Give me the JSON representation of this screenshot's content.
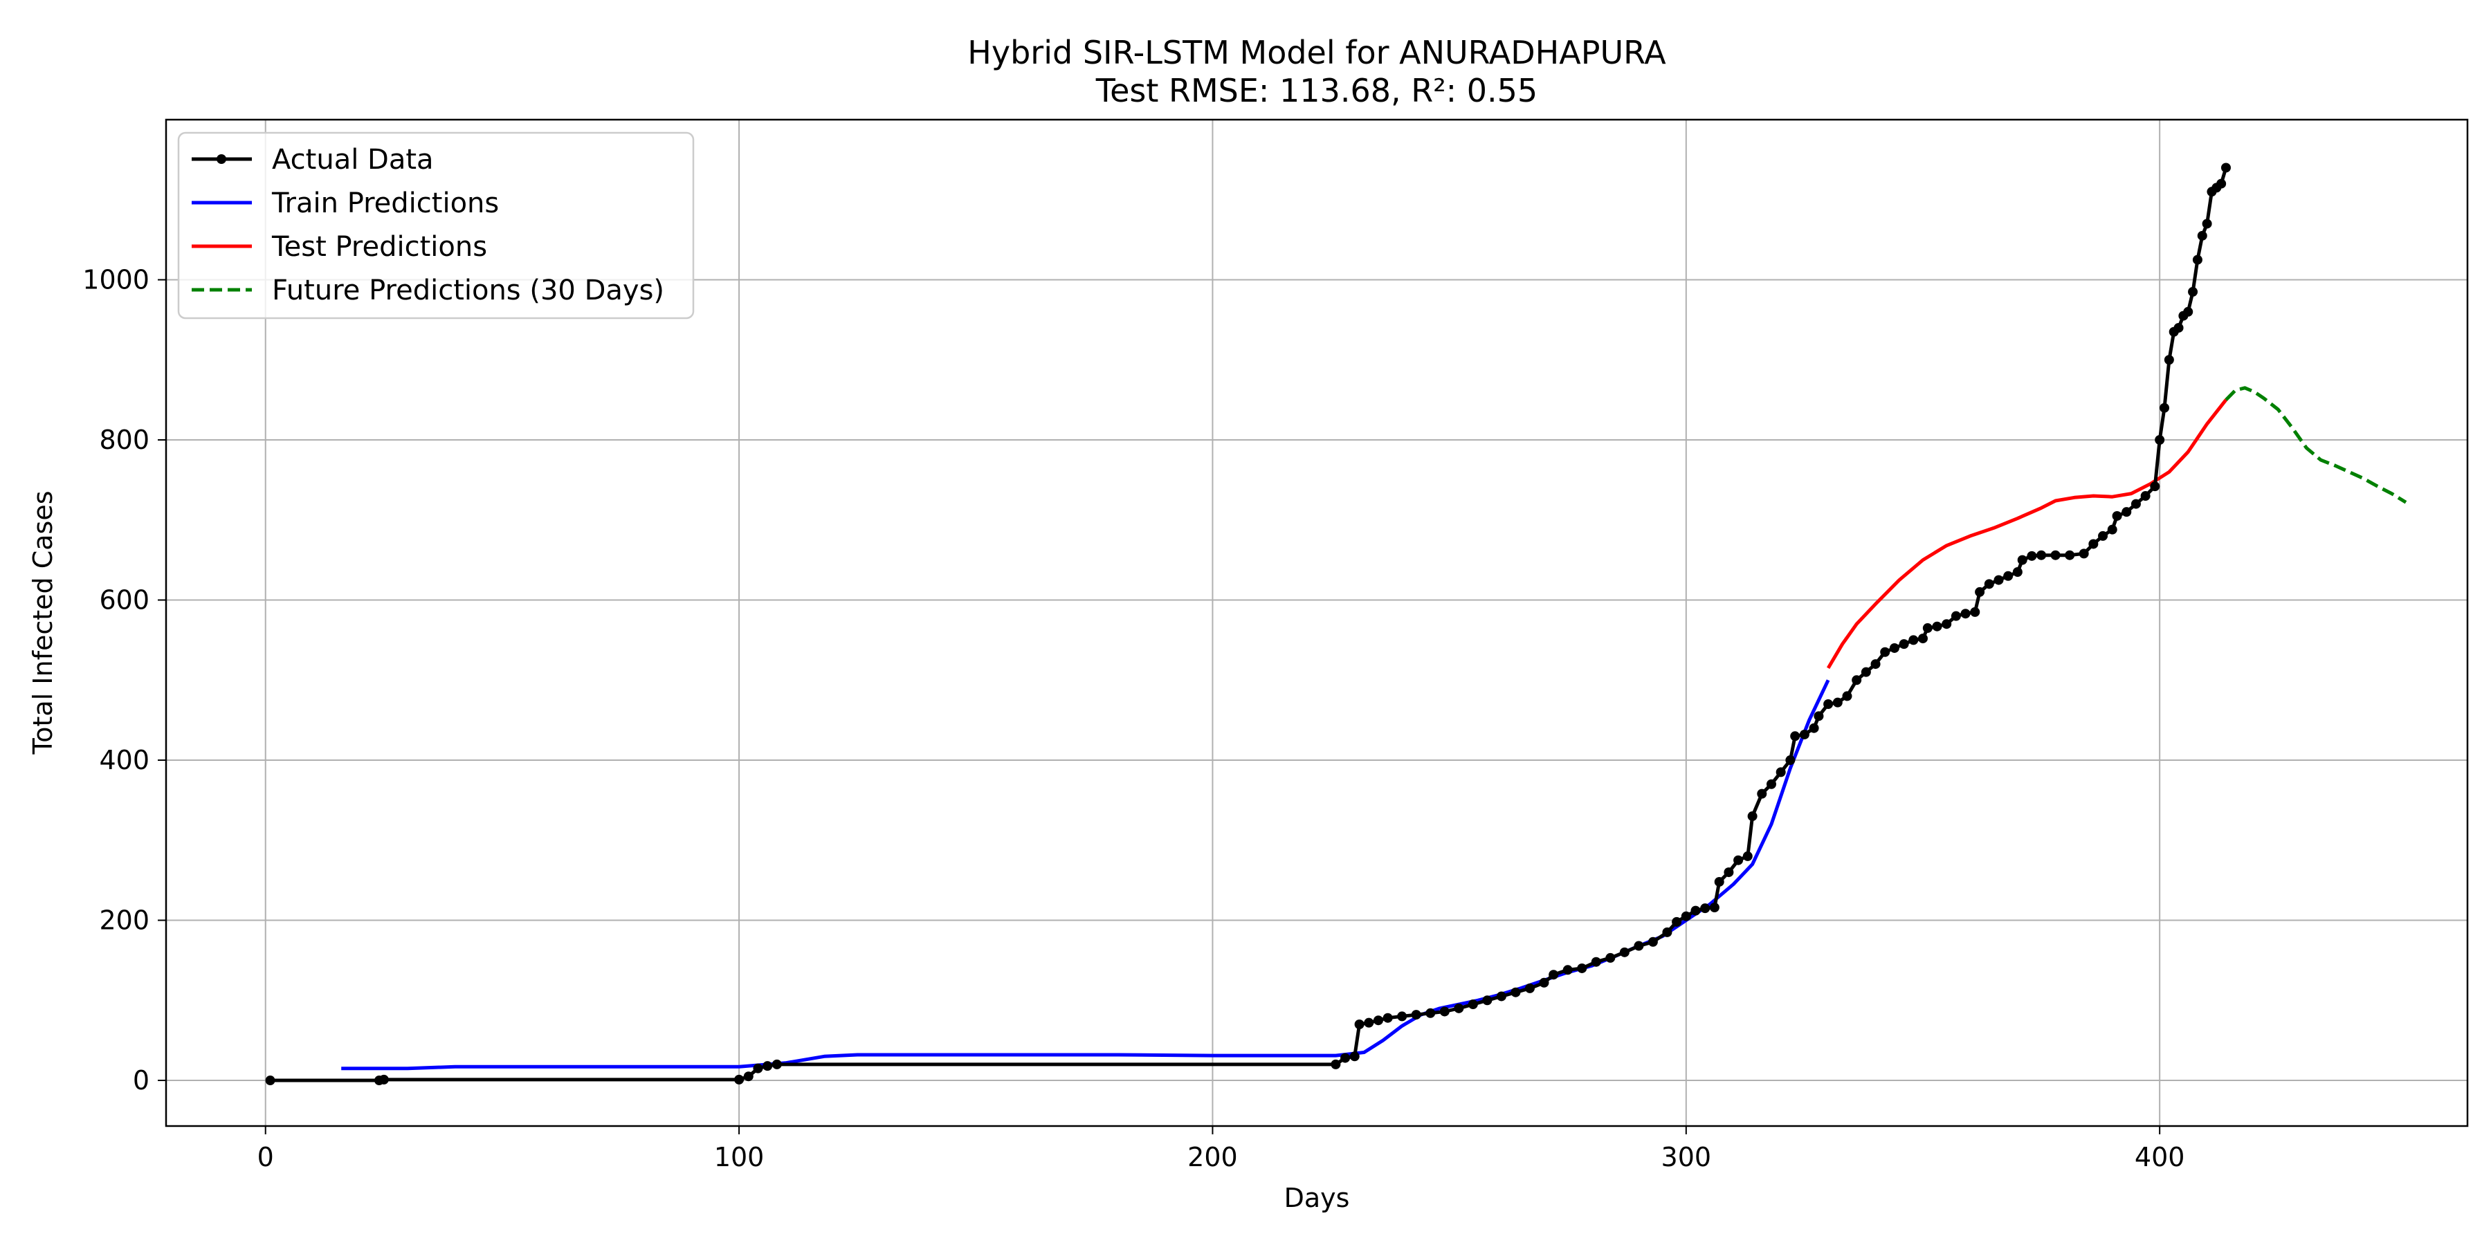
{
  "chart_data": {
    "type": "line",
    "title": "Hybrid SIR-LSTM Model for ANURADHAPURA",
    "subtitle": "Test RMSE: 113.68, R²: 0.55",
    "xlabel": "Days",
    "ylabel": "Total Infected Cases",
    "xlim": [
      -21,
      465
    ],
    "ylim": [
      -57,
      1200
    ],
    "xticks": [
      0,
      100,
      200,
      300,
      400
    ],
    "yticks": [
      0,
      200,
      400,
      600,
      800,
      1000
    ],
    "grid": true,
    "legend_position": "top-left",
    "series": [
      {
        "name": "Actual Data",
        "color": "#000000",
        "style": "solid-with-markers",
        "points": [
          [
            1,
            0
          ],
          [
            24,
            0
          ],
          [
            25,
            1
          ],
          [
            100,
            1
          ],
          [
            102,
            5
          ],
          [
            104,
            15
          ],
          [
            106,
            18
          ],
          [
            108,
            20
          ],
          [
            226,
            20
          ],
          [
            228,
            28
          ],
          [
            230,
            30
          ],
          [
            231,
            70
          ],
          [
            233,
            72
          ],
          [
            235,
            75
          ],
          [
            237,
            78
          ],
          [
            240,
            80
          ],
          [
            243,
            82
          ],
          [
            246,
            84
          ],
          [
            249,
            86
          ],
          [
            252,
            90
          ],
          [
            255,
            95
          ],
          [
            258,
            100
          ],
          [
            261,
            105
          ],
          [
            264,
            110
          ],
          [
            267,
            115
          ],
          [
            270,
            122
          ],
          [
            272,
            132
          ],
          [
            275,
            138
          ],
          [
            278,
            140
          ],
          [
            281,
            148
          ],
          [
            284,
            153
          ],
          [
            287,
            160
          ],
          [
            290,
            168
          ],
          [
            293,
            173
          ],
          [
            296,
            185
          ],
          [
            298,
            198
          ],
          [
            300,
            205
          ],
          [
            302,
            212
          ],
          [
            304,
            215
          ],
          [
            306,
            216
          ],
          [
            307,
            248
          ],
          [
            309,
            260
          ],
          [
            311,
            275
          ],
          [
            313,
            280
          ],
          [
            314,
            330
          ],
          [
            316,
            358
          ],
          [
            318,
            370
          ],
          [
            320,
            385
          ],
          [
            322,
            400
          ],
          [
            323,
            430
          ],
          [
            325,
            432
          ],
          [
            327,
            440
          ],
          [
            328,
            455
          ],
          [
            330,
            470
          ],
          [
            332,
            472
          ],
          [
            334,
            480
          ],
          [
            336,
            500
          ],
          [
            338,
            510
          ],
          [
            340,
            520
          ],
          [
            342,
            535
          ],
          [
            344,
            540
          ],
          [
            346,
            545
          ],
          [
            348,
            550
          ],
          [
            350,
            552
          ],
          [
            351,
            565
          ],
          [
            353,
            567
          ],
          [
            355,
            570
          ],
          [
            357,
            580
          ],
          [
            359,
            583
          ],
          [
            361,
            585
          ],
          [
            362,
            610
          ],
          [
            364,
            620
          ],
          [
            366,
            625
          ],
          [
            368,
            630
          ],
          [
            370,
            635
          ],
          [
            371,
            650
          ],
          [
            373,
            655
          ],
          [
            375,
            656
          ],
          [
            378,
            656
          ],
          [
            381,
            656
          ],
          [
            384,
            658
          ],
          [
            386,
            670
          ],
          [
            388,
            680
          ],
          [
            390,
            688
          ],
          [
            391,
            705
          ],
          [
            393,
            710
          ],
          [
            395,
            720
          ],
          [
            397,
            730
          ],
          [
            399,
            742
          ],
          [
            400,
            800
          ],
          [
            401,
            840
          ],
          [
            402,
            900
          ],
          [
            403,
            935
          ],
          [
            404,
            940
          ],
          [
            405,
            955
          ],
          [
            406,
            960
          ],
          [
            407,
            985
          ],
          [
            408,
            1025
          ],
          [
            409,
            1055
          ],
          [
            410,
            1070
          ],
          [
            411,
            1110
          ],
          [
            412,
            1115
          ],
          [
            413,
            1120
          ],
          [
            414,
            1140
          ]
        ]
      },
      {
        "name": "Train Predictions",
        "color": "#0000ff",
        "style": "solid",
        "points": [
          [
            16,
            15
          ],
          [
            30,
            15
          ],
          [
            40,
            17
          ],
          [
            60,
            17
          ],
          [
            80,
            17
          ],
          [
            100,
            17
          ],
          [
            110,
            22
          ],
          [
            118,
            30
          ],
          [
            125,
            32
          ],
          [
            150,
            32
          ],
          [
            180,
            32
          ],
          [
            200,
            31
          ],
          [
            226,
            31
          ],
          [
            232,
            35
          ],
          [
            236,
            50
          ],
          [
            240,
            68
          ],
          [
            244,
            82
          ],
          [
            248,
            90
          ],
          [
            252,
            95
          ],
          [
            256,
            100
          ],
          [
            260,
            106
          ],
          [
            265,
            115
          ],
          [
            270,
            125
          ],
          [
            275,
            135
          ],
          [
            280,
            143
          ],
          [
            285,
            155
          ],
          [
            290,
            168
          ],
          [
            295,
            180
          ],
          [
            300,
            200
          ],
          [
            305,
            220
          ],
          [
            310,
            245
          ],
          [
            314,
            270
          ],
          [
            318,
            320
          ],
          [
            322,
            390
          ],
          [
            326,
            450
          ],
          [
            330,
            500
          ]
        ]
      },
      {
        "name": "Test Predictions",
        "color": "#ff0000",
        "style": "solid",
        "points": [
          [
            330,
            515
          ],
          [
            333,
            545
          ],
          [
            336,
            570
          ],
          [
            340,
            595
          ],
          [
            345,
            625
          ],
          [
            350,
            650
          ],
          [
            355,
            668
          ],
          [
            360,
            680
          ],
          [
            365,
            690
          ],
          [
            370,
            702
          ],
          [
            375,
            715
          ],
          [
            378,
            724
          ],
          [
            382,
            728
          ],
          [
            386,
            730
          ],
          [
            390,
            729
          ],
          [
            394,
            733
          ],
          [
            398,
            745
          ],
          [
            402,
            760
          ],
          [
            406,
            785
          ],
          [
            410,
            820
          ],
          [
            414,
            850
          ]
        ]
      },
      {
        "name": "Future Predictions (30 Days)",
        "color": "#008000",
        "style": "dashed",
        "points": [
          [
            414,
            850
          ],
          [
            416,
            862
          ],
          [
            418,
            865
          ],
          [
            420,
            860
          ],
          [
            422,
            852
          ],
          [
            425,
            838
          ],
          [
            428,
            815
          ],
          [
            431,
            790
          ],
          [
            434,
            775
          ],
          [
            437,
            768
          ],
          [
            440,
            760
          ],
          [
            443,
            752
          ],
          [
            446,
            742
          ],
          [
            449,
            733
          ],
          [
            452,
            722
          ]
        ]
      }
    ]
  }
}
